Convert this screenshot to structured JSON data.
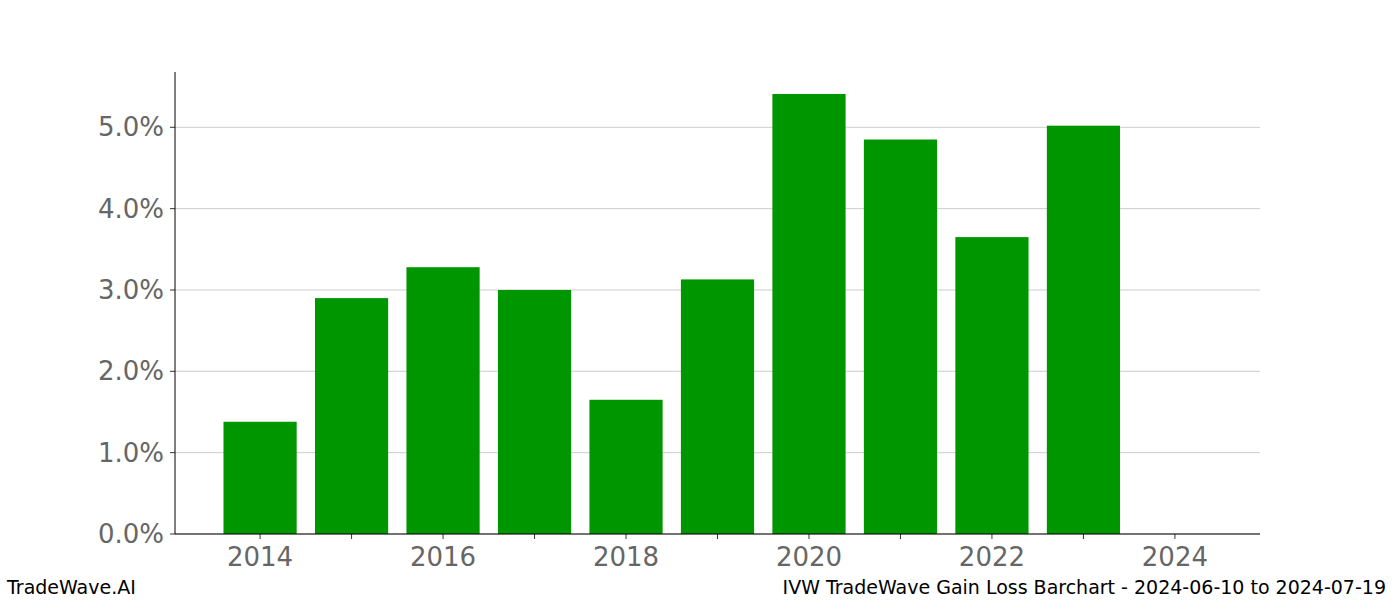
{
  "chart_data": {
    "type": "bar",
    "title": "IVW TradeWave Gain Loss Barchart - 2024-06-10 to 2024-07-19",
    "annotations": [
      "TradeWave.AI"
    ],
    "categories": [
      "2014",
      null,
      "2016",
      null,
      "2018",
      null,
      "2020",
      null,
      "2022",
      null,
      "2024"
    ],
    "values": [
      1.38,
      2.9,
      3.28,
      3.0,
      1.65,
      3.13,
      5.41,
      4.85,
      3.65,
      5.02,
      null
    ],
    "color": "#009600",
    "ylim": [
      0,
      5.68
    ],
    "yticks": [
      {
        "value": 0,
        "label": "0.0%"
      },
      {
        "value": 1,
        "label": "1.0%"
      },
      {
        "value": 2,
        "label": "2.0%"
      },
      {
        "value": 3,
        "label": "3.0%"
      },
      {
        "value": 4,
        "label": "4.0%"
      },
      {
        "value": 5,
        "label": "5.0%"
      }
    ],
    "grid": true
  }
}
